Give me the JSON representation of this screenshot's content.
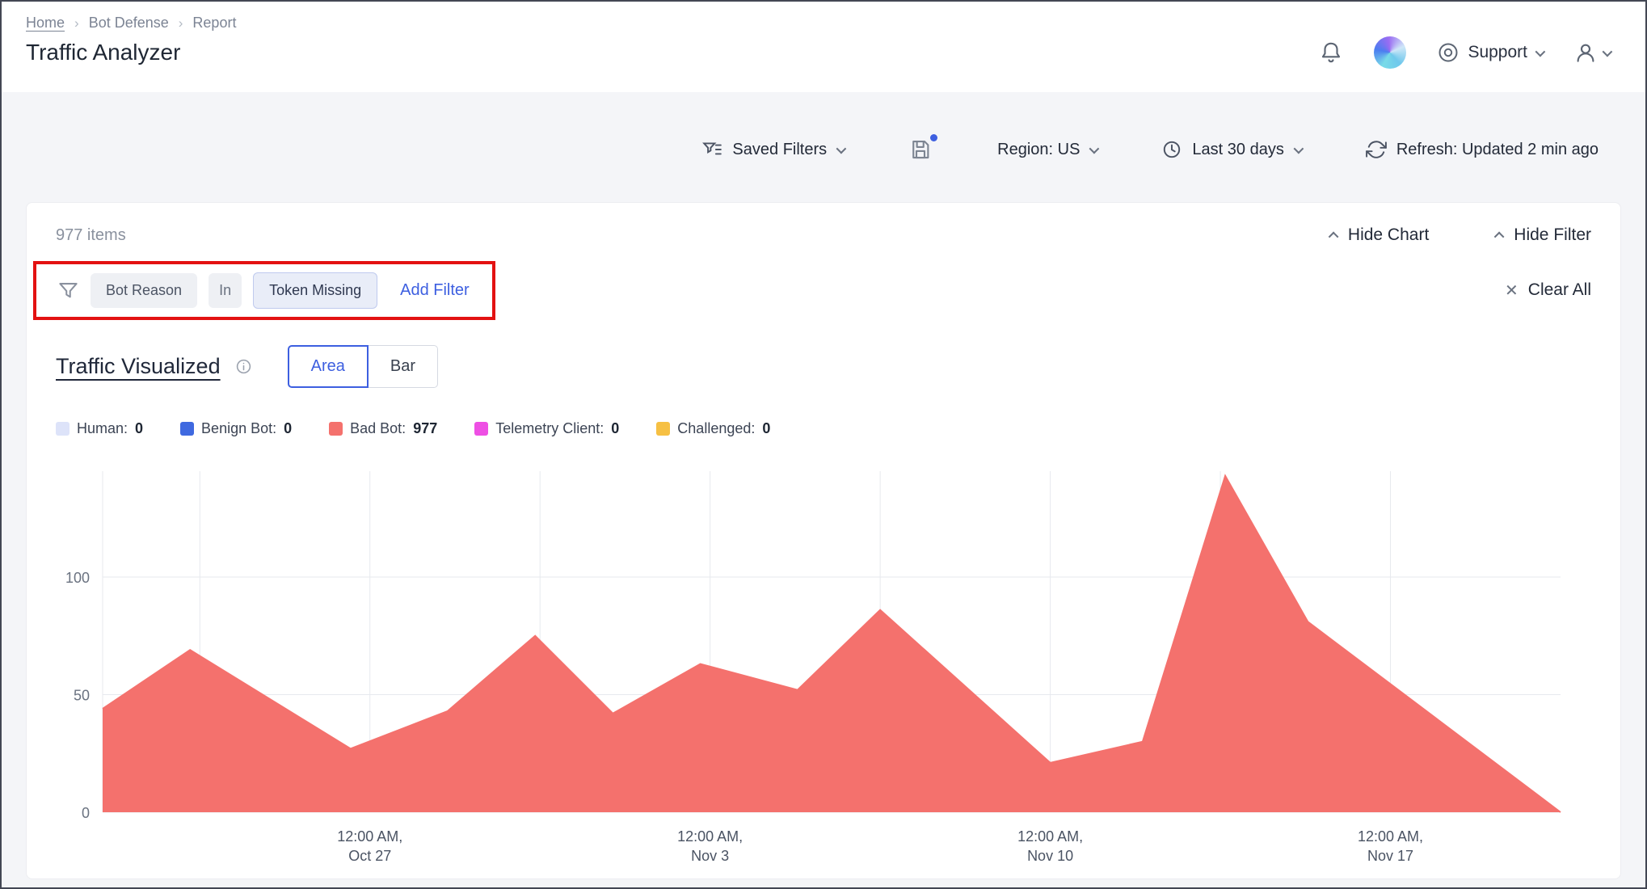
{
  "breadcrumb": {
    "items": [
      "Home",
      "Bot Defense",
      "Report"
    ]
  },
  "page_title": "Traffic Analyzer",
  "header": {
    "support_label": "Support"
  },
  "toolbar": {
    "saved_filters_label": "Saved Filters",
    "region_label": "Region: US",
    "time_range_label": "Last 30 days",
    "refresh_label": "Refresh: Updated 2 min ago"
  },
  "content": {
    "items_count": "977 items",
    "hide_chart_label": "Hide Chart",
    "hide_filter_label": "Hide Filter",
    "filter": {
      "field": "Bot Reason",
      "operator": "In",
      "value": "Token Missing",
      "add_filter_label": "Add Filter",
      "clear_all_label": "Clear All"
    },
    "section_title": "Traffic Visualized",
    "view_toggle": {
      "options": [
        "Area",
        "Bar"
      ],
      "selected": "Area"
    }
  },
  "legend": {
    "items": [
      {
        "label": "Human:",
        "value": "0",
        "color": "#dde3f9"
      },
      {
        "label": "Benign Bot:",
        "value": "0",
        "color": "#3f69e0"
      },
      {
        "label": "Bad Bot:",
        "value": "977",
        "color": "#f4716d"
      },
      {
        "label": "Telemetry Client:",
        "value": "0",
        "color": "#ee4fe4"
      },
      {
        "label": "Challenged:",
        "value": "0",
        "color": "#f6c043"
      }
    ]
  },
  "chart_data": {
    "type": "area",
    "title": "Traffic Visualized",
    "xlabel": "",
    "ylabel": "",
    "ylim": [
      0,
      145
    ],
    "x_range_days": [
      0,
      30
    ],
    "y_ticks": [
      0,
      50,
      100
    ],
    "x_ticks": [
      {
        "day": 5.5,
        "label_line1": "12:00 AM,",
        "label_line2": "Oct 27"
      },
      {
        "day": 12.5,
        "label_line1": "12:00 AM,",
        "label_line2": "Nov 3"
      },
      {
        "day": 19.5,
        "label_line1": "12:00 AM,",
        "label_line2": "Nov 10"
      },
      {
        "day": 26.5,
        "label_line1": "12:00 AM,",
        "label_line2": "Nov 17"
      }
    ],
    "grid_vertical_days": [
      0,
      2,
      5.5,
      9,
      12.5,
      16,
      19.5,
      23,
      26.5
    ],
    "series": [
      {
        "name": "Bad Bot",
        "color": "#f4716d",
        "points": [
          [
            0,
            44
          ],
          [
            1.8,
            69
          ],
          [
            5.1,
            27
          ],
          [
            7.1,
            43
          ],
          [
            8.9,
            75
          ],
          [
            10.5,
            42
          ],
          [
            12.3,
            63
          ],
          [
            14.3,
            52
          ],
          [
            16,
            86
          ],
          [
            19.5,
            21
          ],
          [
            21.4,
            30
          ],
          [
            23.1,
            143
          ],
          [
            24.8,
            81
          ],
          [
            30,
            0
          ]
        ]
      }
    ]
  },
  "colors": {
    "accent": "#3d5fe0",
    "annotation": "#e31212",
    "bad_bot": "#f4716d"
  }
}
